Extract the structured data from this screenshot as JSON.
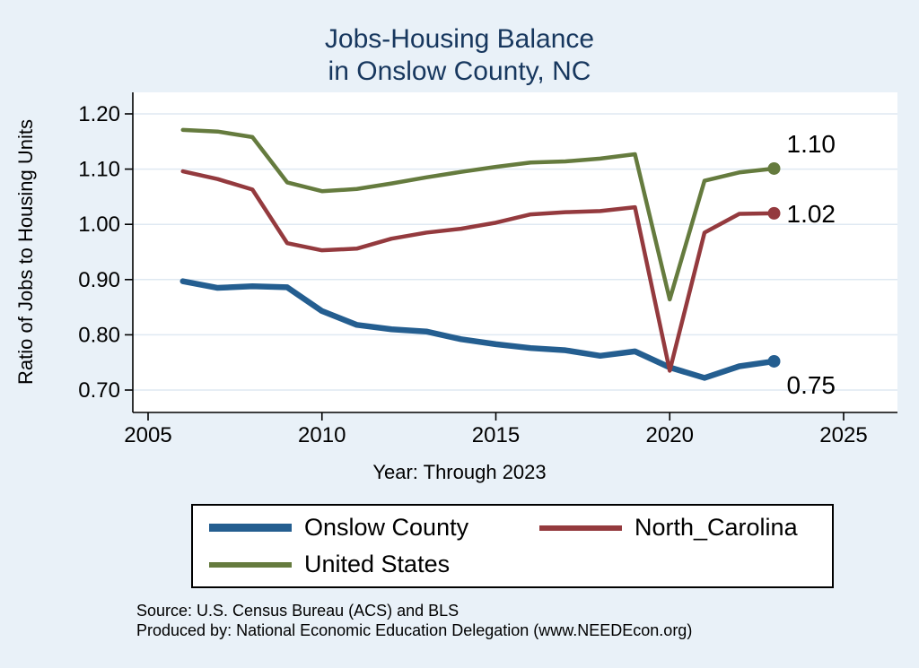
{
  "title": {
    "line1": "Jobs-Housing Balance",
    "line2": "in Onslow County, NC"
  },
  "axes": {
    "y_label": "Ratio of Jobs to Housing Units",
    "x_caption": "Year: Through 2023",
    "y_ticks": [
      {
        "value": 1.2,
        "label": "1.20"
      },
      {
        "value": 1.1,
        "label": "1.10"
      },
      {
        "value": 1.0,
        "label": "1.00"
      },
      {
        "value": 0.9,
        "label": "0.90"
      },
      {
        "value": 0.8,
        "label": "0.80"
      },
      {
        "value": 0.7,
        "label": "0.70"
      }
    ],
    "x_ticks": [
      {
        "value": 2005,
        "label": "2005"
      },
      {
        "value": 2010,
        "label": "2010"
      },
      {
        "value": 2015,
        "label": "2015"
      },
      {
        "value": 2020,
        "label": "2020"
      },
      {
        "value": 2025,
        "label": "2025"
      }
    ]
  },
  "chart_data": {
    "type": "line",
    "title": "Jobs-Housing Balance in Onslow County, NC",
    "xlabel": "Year: Through 2023",
    "ylabel": "Ratio of Jobs to Housing Units",
    "x": [
      2006,
      2007,
      2008,
      2009,
      2010,
      2011,
      2012,
      2013,
      2014,
      2015,
      2016,
      2017,
      2018,
      2019,
      2020,
      2021,
      2022,
      2023
    ],
    "series": [
      {
        "name": "Onslow County",
        "color": "#245e90",
        "end_label": "0.75",
        "values": [
          0.897,
          0.885,
          0.888,
          0.886,
          0.843,
          0.818,
          0.81,
          0.806,
          0.792,
          0.783,
          0.776,
          0.772,
          0.762,
          0.77,
          0.741,
          0.722,
          0.743,
          0.752
        ]
      },
      {
        "name": "North_Carolina",
        "color": "#943a3e",
        "end_label": "1.02",
        "values": [
          1.096,
          1.082,
          1.063,
          0.966,
          0.953,
          0.956,
          0.974,
          0.985,
          0.992,
          1.003,
          1.018,
          1.022,
          1.024,
          1.031,
          0.735,
          0.985,
          1.019,
          1.02
        ]
      },
      {
        "name": "United States",
        "color": "#657b3e",
        "end_label": "1.10",
        "values": [
          1.171,
          1.168,
          1.158,
          1.076,
          1.06,
          1.064,
          1.074,
          1.085,
          1.095,
          1.104,
          1.112,
          1.114,
          1.119,
          1.127,
          0.864,
          1.079,
          1.094,
          1.101
        ]
      }
    ],
    "xlim": [
      2004.6,
      2025.6
    ],
    "ylim": [
      0.66,
      1.24
    ],
    "grid": true,
    "legend_position": "bottom"
  },
  "footer": {
    "source": "Source: U.S. Census Bureau (ACS) and BLS",
    "produced": "Produced by: National Economic Education Delegation (www.NEEDEcon.org)"
  },
  "colors": {
    "background": "#e9f1f8",
    "plot_background": "#ffffff",
    "title": "#17375e",
    "axis": "#000000",
    "grid": "#dfe9f2",
    "end_label": "#000000"
  }
}
